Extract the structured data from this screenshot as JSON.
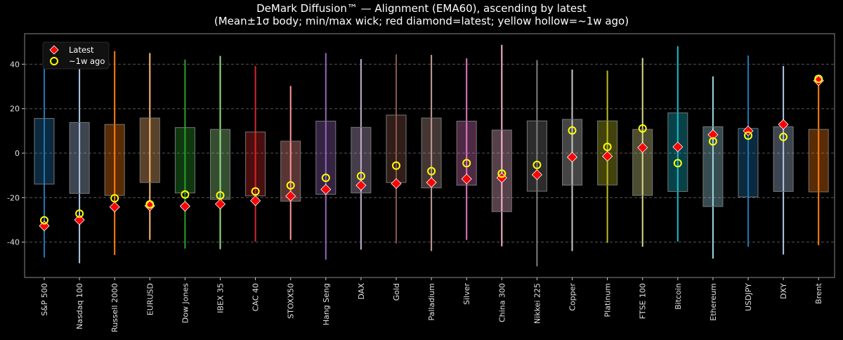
{
  "chart_data": {
    "type": "box-range",
    "title": "DeMark Diffusion™ — Alignment (EMA60), ascending by latest",
    "subtitle": "(Mean±1σ body; min/max wick; red diamond=latest; yellow hollow=~1w ago)",
    "xlabel": "",
    "ylabel": "",
    "ylim": [
      -55.9,
      53.7
    ],
    "yticks": [
      "-40",
      "-20",
      "0",
      "20",
      "40"
    ],
    "ytick_values": [
      -40,
      -20,
      0,
      20,
      40
    ],
    "grid": "horizontal dashed",
    "legend": {
      "placement": "top-left",
      "entries": [
        "Latest",
        "~1w ago"
      ]
    },
    "categories": [
      "S&P 500",
      "Nasdaq 100",
      "Russell 2000",
      "EURUSD",
      "Dow Jones",
      "IBEX 35",
      "CAC 40",
      "STOXX50",
      "Hang Seng",
      "DAX",
      "Gold",
      "Palladium",
      "Silver",
      "China 300",
      "Nikkei 225",
      "Copper",
      "Platinum",
      "FTSE 100",
      "Bitcoin",
      "Ethereum",
      "USDJPY",
      "DXY",
      "Brent"
    ],
    "colors": [
      "#1f77b4",
      "#aec7e8",
      "#ff7f0e",
      "#ffbb78",
      "#2ca02c",
      "#98df8a",
      "#d62728",
      "#ff9896",
      "#9467bd",
      "#c5b0d5",
      "#8c564b",
      "#c49c94",
      "#e377c2",
      "#f7b6d2",
      "#7f7f7f",
      "#c7c7c7",
      "#bcbd22",
      "#dbdb8d",
      "#17becf",
      "#9edae5",
      "#1f77b4",
      "#aec7e8",
      "#ff7f0e"
    ],
    "min": [
      -46.9,
      -49.5,
      -45.8,
      -39.0,
      -42.9,
      -43.2,
      -39.8,
      -39.0,
      -47.9,
      -43.4,
      -40.6,
      -44.0,
      -39.0,
      -41.9,
      -50.9,
      -44.0,
      -40.3,
      -42.1,
      -39.7,
      -47.4,
      -42.1,
      -45.6,
      -41.4
    ],
    "max": [
      45.9,
      47.0,
      45.9,
      45.0,
      42.1,
      43.7,
      39.2,
      30.2,
      45.0,
      42.3,
      44.4,
      44.2,
      42.6,
      48.7,
      41.8,
      37.6,
      37.1,
      42.8,
      48.1,
      34.5,
      43.9,
      39.2,
      33.4
    ],
    "body_low": [
      -13.9,
      -18.1,
      -19.0,
      -13.2,
      -17.9,
      -20.8,
      -19.2,
      -21.6,
      -18.5,
      -17.9,
      -13.2,
      -15.6,
      -14.4,
      -26.3,
      -17.1,
      -14.4,
      -14.3,
      -19.0,
      -17.2,
      -24.0,
      -19.7,
      -17.2,
      -17.4
    ],
    "body_high": [
      15.6,
      13.8,
      12.9,
      15.8,
      11.5,
      10.7,
      9.5,
      5.4,
      14.4,
      11.6,
      17.1,
      15.8,
      14.4,
      10.4,
      14.5,
      15.2,
      14.5,
      10.7,
      18.1,
      11.9,
      11.1,
      11.9,
      10.7
    ],
    "latest": [
      -32.7,
      -30.0,
      -24.2,
      -23.7,
      -23.9,
      -22.9,
      -21.4,
      -19.3,
      -16.3,
      -14.5,
      -13.7,
      -13.2,
      -11.6,
      -11.1,
      -9.7,
      -1.8,
      -1.4,
      2.5,
      2.8,
      8.3,
      10.0,
      12.9,
      32.6
    ],
    "week_ago": [
      -30.2,
      -27.2,
      -20.3,
      -23.0,
      -18.6,
      -19.0,
      -17.2,
      -14.5,
      -11.1,
      -10.3,
      -5.6,
      -8.1,
      -4.5,
      -9.2,
      -5.3,
      10.2,
      2.8,
      11.1,
      -4.5,
      5.3,
      7.9,
      7.3,
      33.4
    ],
    "marker_colors": {
      "latest": "#ff0000",
      "week_ago": "#ffff00"
    }
  }
}
